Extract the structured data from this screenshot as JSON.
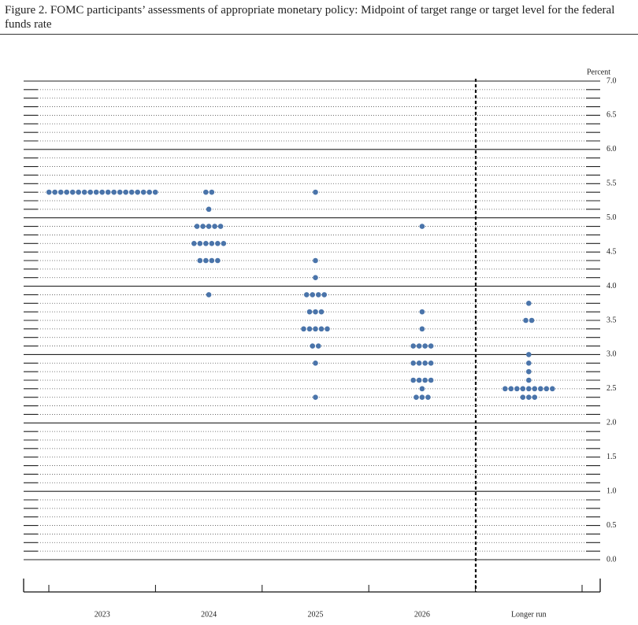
{
  "chart_data": {
    "type": "dot",
    "title": "Figure 2.  FOMC participants’ assessments of appropriate monetary policy:  Midpoint of target range or target level for the federal funds rate",
    "y_axis_label": "Percent",
    "categories": [
      "2023",
      "2024",
      "2025",
      "2026",
      "Longer run"
    ],
    "values": [
      [
        5.375,
        5.375,
        5.375,
        5.375,
        5.375,
        5.375,
        5.375,
        5.375,
        5.375,
        5.375,
        5.375,
        5.375,
        5.375,
        5.375,
        5.375,
        5.375,
        5.375,
        5.375,
        5.375
      ],
      [
        5.375,
        5.375,
        5.125,
        4.875,
        4.875,
        4.875,
        4.875,
        4.875,
        4.625,
        4.625,
        4.625,
        4.625,
        4.625,
        4.625,
        4.375,
        4.375,
        4.375,
        4.375,
        3.875
      ],
      [
        5.375,
        4.375,
        4.125,
        3.875,
        3.875,
        3.875,
        3.875,
        3.625,
        3.625,
        3.625,
        3.375,
        3.375,
        3.375,
        3.375,
        3.375,
        3.125,
        3.125,
        2.875,
        2.375
      ],
      [
        4.875,
        3.625,
        3.375,
        3.125,
        3.125,
        3.125,
        3.125,
        2.875,
        2.875,
        2.875,
        2.875,
        2.625,
        2.625,
        2.625,
        2.625,
        2.5,
        2.375,
        2.375,
        2.375
      ],
      [
        3.75,
        3.5,
        3.5,
        3.0,
        2.875,
        2.75,
        2.625,
        2.5,
        2.5,
        2.5,
        2.5,
        2.5,
        2.5,
        2.5,
        2.5,
        2.5,
        2.375,
        2.375,
        2.375
      ]
    ],
    "color": "#4a74aa",
    "ylim": [
      0,
      7
    ],
    "yticks": [
      {
        "value": 0,
        "label": "0.0"
      },
      0.5,
      {
        "value": 1,
        "label": "1.0"
      },
      1.5,
      {
        "value": 2,
        "label": "2.0"
      },
      2.5,
      {
        "value": 3,
        "label": "3.0"
      },
      3.5,
      {
        "value": 4,
        "label": "4.0"
      },
      4.5,
      {
        "value": 5,
        "label": "5.0"
      },
      5.5,
      {
        "value": 6,
        "label": "6.0"
      },
      6.5,
      {
        "value": 7,
        "label": "7.0"
      }
    ],
    "grid": true
  }
}
